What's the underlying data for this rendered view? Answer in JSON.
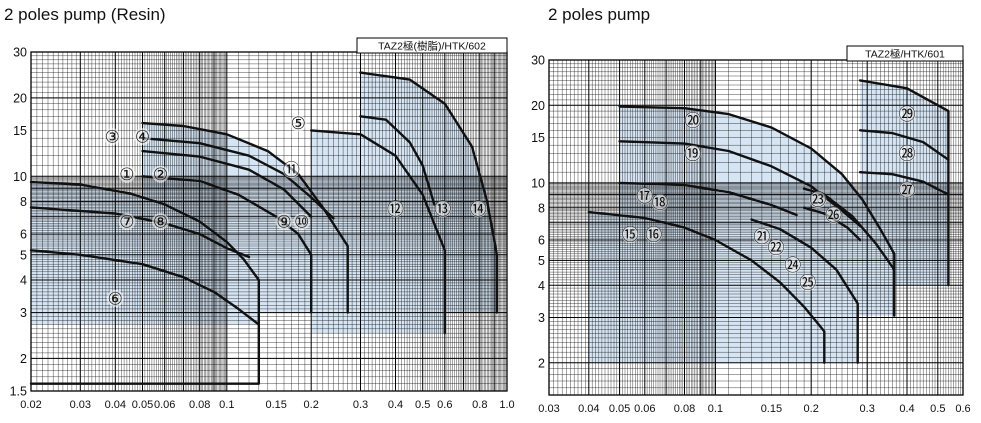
{
  "chart_data": [
    {
      "type": "area",
      "title": "2 poles pump (Resin)",
      "model_code": "TAZ2極(樹脂)/HTK/602",
      "scale": "log-log",
      "xlim": [
        0.02,
        1.0
      ],
      "ylim": [
        1.5,
        30
      ],
      "x_ticks": [
        "0.02",
        "0.03",
        "0.04",
        "0.05",
        "0.06",
        "0.08",
        "0.1",
        "0.15",
        "0.2",
        "0.3",
        "0.4",
        "0.5",
        "0.6",
        "0.8",
        "1.0"
      ],
      "x_tick_values": [
        0.02,
        0.03,
        0.04,
        0.05,
        0.06,
        0.08,
        0.1,
        0.15,
        0.2,
        0.3,
        0.4,
        0.5,
        0.6,
        0.8,
        1.0
      ],
      "y_ticks": [
        "30",
        "20",
        "15",
        "10",
        "8",
        "6",
        "5",
        "4",
        "3",
        "2",
        "1.5"
      ],
      "y_tick_values": [
        30,
        20,
        15,
        10,
        8,
        6,
        5,
        4,
        3,
        2,
        1.5
      ],
      "grid": true,
      "regions": [
        {
          "outline": [
            [
              0.02,
              9.5
            ],
            [
              0.03,
              9.3
            ],
            [
              0.045,
              8.6
            ],
            [
              0.06,
              7.8
            ],
            [
              0.08,
              6.7
            ],
            [
              0.1,
              5.6
            ],
            [
              0.115,
              4.8
            ],
            [
              0.13,
              4.0
            ],
            [
              0.13,
              2.7
            ],
            [
              0.02,
              2.7
            ]
          ]
        },
        {
          "outline": [
            [
              0.05,
              16
            ],
            [
              0.07,
              15.6
            ],
            [
              0.1,
              14.5
            ],
            [
              0.14,
              12.5
            ],
            [
              0.18,
              10.2
            ],
            [
              0.22,
              7.6
            ],
            [
              0.27,
              5.4
            ],
            [
              0.27,
              3.0
            ],
            [
              0.05,
              3.0
            ]
          ]
        },
        {
          "outline": [
            [
              0.2,
              15
            ],
            [
              0.3,
              14.5
            ],
            [
              0.4,
              12
            ],
            [
              0.5,
              8.5
            ],
            [
              0.6,
              5.2
            ],
            [
              0.6,
              2.5
            ],
            [
              0.2,
              2.5
            ]
          ]
        },
        {
          "outline": [
            [
              0.3,
              25
            ],
            [
              0.45,
              23.5
            ],
            [
              0.6,
              19
            ],
            [
              0.75,
              13
            ],
            [
              0.85,
              8
            ],
            [
              0.92,
              5
            ],
            [
              0.92,
              3.0
            ],
            [
              0.3,
              3.0
            ]
          ]
        }
      ],
      "curves": [
        {
          "points": [
            [
              0.02,
              9.5
            ],
            [
              0.03,
              9.3
            ],
            [
              0.045,
              8.6
            ],
            [
              0.06,
              7.8
            ],
            [
              0.08,
              6.7
            ],
            [
              0.1,
              5.6
            ],
            [
              0.115,
              4.8
            ],
            [
              0.13,
              4.0
            ],
            [
              0.13,
              2.7
            ]
          ]
        },
        {
          "points": [
            [
              0.02,
              7.6
            ],
            [
              0.04,
              7.2
            ],
            [
              0.06,
              6.6
            ],
            [
              0.08,
              6.0
            ],
            [
              0.1,
              5.3
            ],
            [
              0.12,
              4.9
            ]
          ]
        },
        {
          "points": [
            [
              0.02,
              5.2
            ],
            [
              0.03,
              5.0
            ],
            [
              0.05,
              4.6
            ],
            [
              0.07,
              4.1
            ],
            [
              0.09,
              3.6
            ],
            [
              0.11,
              3.1
            ],
            [
              0.13,
              2.7
            ],
            [
              0.13,
              1.6
            ],
            [
              0.02,
              1.6
            ]
          ]
        },
        {
          "points": [
            [
              0.05,
              16
            ],
            [
              0.07,
              15.6
            ],
            [
              0.1,
              14.5
            ],
            [
              0.14,
              12.5
            ],
            [
              0.18,
              10.2
            ],
            [
              0.22,
              7.6
            ],
            [
              0.27,
              5.4
            ],
            [
              0.27,
              3.0
            ]
          ]
        },
        {
          "points": [
            [
              0.05,
              14
            ],
            [
              0.08,
              13.4
            ],
            [
              0.12,
              12.0
            ],
            [
              0.16,
              10.2
            ],
            [
              0.2,
              8.3
            ],
            [
              0.24,
              6.9
            ]
          ]
        },
        {
          "points": [
            [
              0.05,
              12.5
            ],
            [
              0.08,
              11.9
            ],
            [
              0.12,
              10.6
            ],
            [
              0.16,
              8.9
            ],
            [
              0.2,
              7.0
            ]
          ]
        },
        {
          "points": [
            [
              0.05,
              10
            ],
            [
              0.08,
              9.6
            ],
            [
              0.11,
              8.5
            ],
            [
              0.15,
              7.0
            ],
            [
              0.18,
              6.0
            ],
            [
              0.2,
              5.0
            ],
            [
              0.2,
              3.0
            ]
          ]
        },
        {
          "points": [
            [
              0.2,
              15
            ],
            [
              0.3,
              14.5
            ],
            [
              0.4,
              12
            ],
            [
              0.5,
              8.5
            ],
            [
              0.6,
              5.2
            ],
            [
              0.6,
              2.5
            ]
          ]
        },
        {
          "points": [
            [
              0.3,
              17
            ],
            [
              0.37,
              16.5
            ],
            [
              0.45,
              13.5
            ],
            [
              0.5,
              11
            ],
            [
              0.55,
              7.8
            ]
          ]
        },
        {
          "points": [
            [
              0.3,
              25
            ],
            [
              0.45,
              23.5
            ],
            [
              0.6,
              19
            ],
            [
              0.75,
              13
            ],
            [
              0.85,
              8
            ],
            [
              0.92,
              5
            ],
            [
              0.92,
              3.0
            ]
          ]
        }
      ],
      "labels": [
        {
          "text": "①",
          "x": 0.044,
          "y": 10.2
        },
        {
          "text": "②",
          "x": 0.058,
          "y": 10.2
        },
        {
          "text": "③",
          "x": 0.039,
          "y": 14.2
        },
        {
          "text": "④",
          "x": 0.05,
          "y": 14.2
        },
        {
          "text": "⑤",
          "x": 0.18,
          "y": 16.0
        },
        {
          "text": "⑥",
          "x": 0.04,
          "y": 3.4
        },
        {
          "text": "⑦",
          "x": 0.044,
          "y": 6.7
        },
        {
          "text": "⑧",
          "x": 0.058,
          "y": 6.7
        },
        {
          "text": "⑨",
          "x": 0.16,
          "y": 6.7
        },
        {
          "text": "⑩",
          "x": 0.185,
          "y": 6.7
        },
        {
          "text": "⑪",
          "x": 0.17,
          "y": 10.6
        },
        {
          "text": "⑫",
          "x": 0.4,
          "y": 7.5
        },
        {
          "text": "⑬",
          "x": 0.59,
          "y": 7.5
        },
        {
          "text": "⑭",
          "x": 0.79,
          "y": 7.5
        }
      ]
    },
    {
      "type": "area",
      "title": "2 poles pump",
      "model_code": "TAZ2極/HTK/601",
      "scale": "log-log",
      "xlim": [
        0.03,
        0.6
      ],
      "ylim": [
        1.5,
        30
      ],
      "x_ticks": [
        "0.03",
        "0.04",
        "0.05",
        "0.06",
        "0.08",
        "0.1",
        "0.15",
        "0.2",
        "0.3",
        "0.4",
        "0.5",
        "0.6"
      ],
      "x_tick_values": [
        0.03,
        0.04,
        0.05,
        0.06,
        0.08,
        0.1,
        0.15,
        0.2,
        0.3,
        0.4,
        0.5,
        0.6
      ],
      "y_ticks": [
        "30",
        "20",
        "15",
        "10",
        "8",
        "6",
        "5",
        "4",
        "3",
        "2"
      ],
      "y_tick_values": [
        30,
        20,
        15,
        10,
        8,
        6,
        5,
        4,
        3,
        2
      ],
      "grid": true,
      "regions": [
        {
          "outline": [
            [
              0.05,
              19.8
            ],
            [
              0.08,
              19.5
            ],
            [
              0.11,
              18.5
            ],
            [
              0.15,
              16.4
            ],
            [
              0.2,
              13.6
            ],
            [
              0.25,
              10.8
            ],
            [
              0.29,
              8.6
            ],
            [
              0.33,
              6.6
            ],
            [
              0.365,
              5.3
            ],
            [
              0.365,
              3.05
            ],
            [
              0.05,
              3.05
            ]
          ]
        },
        {
          "outline": [
            [
              0.04,
              7.7
            ],
            [
              0.06,
              7.3
            ],
            [
              0.08,
              6.7
            ],
            [
              0.1,
              6.0
            ],
            [
              0.13,
              5.0
            ],
            [
              0.16,
              4.1
            ],
            [
              0.19,
              3.3
            ],
            [
              0.22,
              2.65
            ],
            [
              0.22,
              2.0
            ],
            [
              0.04,
              2.0
            ]
          ]
        },
        {
          "outline": [
            [
              0.13,
              7.2
            ],
            [
              0.16,
              6.6
            ],
            [
              0.2,
              5.6
            ],
            [
              0.24,
              4.6
            ],
            [
              0.28,
              3.4
            ],
            [
              0.28,
              2.0
            ],
            [
              0.13,
              2.0
            ]
          ]
        },
        {
          "outline": [
            [
              0.19,
              9.5
            ],
            [
              0.22,
              9.0
            ],
            [
              0.27,
              7.4
            ],
            [
              0.32,
              5.8
            ],
            [
              0.365,
              4.6
            ],
            [
              0.365,
              3.05
            ],
            [
              0.19,
              3.05
            ]
          ]
        },
        {
          "outline": [
            [
              0.285,
              25
            ],
            [
              0.4,
              23.3
            ],
            [
              0.54,
              19
            ],
            [
              0.54,
              4.0
            ],
            [
              0.285,
              4.0
            ]
          ]
        }
      ],
      "curves": [
        {
          "points": [
            [
              0.05,
              19.8
            ],
            [
              0.08,
              19.5
            ],
            [
              0.11,
              18.5
            ],
            [
              0.15,
              16.4
            ],
            [
              0.2,
              13.6
            ],
            [
              0.25,
              10.8
            ],
            [
              0.29,
              8.6
            ],
            [
              0.33,
              6.6
            ],
            [
              0.365,
              5.3
            ],
            [
              0.365,
              3.05
            ]
          ]
        },
        {
          "points": [
            [
              0.05,
              14.5
            ],
            [
              0.08,
              14.2
            ],
            [
              0.11,
              13.3
            ],
            [
              0.15,
              11.6
            ],
            [
              0.2,
              9.7
            ],
            [
              0.25,
              7.8
            ],
            [
              0.285,
              6.8
            ]
          ]
        },
        {
          "points": [
            [
              0.05,
              10
            ],
            [
              0.08,
              9.8
            ],
            [
              0.11,
              9.2
            ],
            [
              0.15,
              8.2
            ],
            [
              0.18,
              7.5
            ]
          ]
        },
        {
          "points": [
            [
              0.04,
              7.7
            ],
            [
              0.06,
              7.3
            ],
            [
              0.08,
              6.7
            ],
            [
              0.1,
              6.0
            ],
            [
              0.13,
              5.0
            ],
            [
              0.16,
              4.1
            ],
            [
              0.19,
              3.3
            ],
            [
              0.22,
              2.65
            ],
            [
              0.22,
              2.0
            ]
          ]
        },
        {
          "points": [
            [
              0.13,
              7.2
            ],
            [
              0.16,
              6.6
            ],
            [
              0.2,
              5.6
            ],
            [
              0.24,
              4.6
            ],
            [
              0.28,
              3.4
            ],
            [
              0.28,
              2.0
            ]
          ]
        },
        {
          "points": [
            [
              0.19,
              9.5
            ],
            [
              0.22,
              9.0
            ],
            [
              0.27,
              7.4
            ],
            [
              0.32,
              5.8
            ],
            [
              0.365,
              4.6
            ],
            [
              0.365,
              3.05
            ]
          ]
        },
        {
          "points": [
            [
              0.19,
              8.0
            ],
            [
              0.22,
              7.6
            ],
            [
              0.26,
              6.7
            ],
            [
              0.285,
              6.0
            ]
          ]
        },
        {
          "points": [
            [
              0.285,
              25
            ],
            [
              0.4,
              23.3
            ],
            [
              0.54,
              19
            ],
            [
              0.54,
              4.0
            ]
          ]
        },
        {
          "points": [
            [
              0.285,
              16
            ],
            [
              0.36,
              15.6
            ],
            [
              0.45,
              14.4
            ],
            [
              0.54,
              12.3
            ]
          ]
        },
        {
          "points": [
            [
              0.285,
              11
            ],
            [
              0.36,
              10.8
            ],
            [
              0.45,
              10.1
            ],
            [
              0.54,
              9.0
            ]
          ]
        }
      ],
      "labels": [
        {
          "text": "⑮",
          "x": 0.054,
          "y": 6.3
        },
        {
          "text": "⑯",
          "x": 0.064,
          "y": 6.3
        },
        {
          "text": "⑰",
          "x": 0.06,
          "y": 8.9
        },
        {
          "text": "⑱",
          "x": 0.067,
          "y": 8.4
        },
        {
          "text": "⑲",
          "x": 0.085,
          "y": 13.0
        },
        {
          "text": "⑳",
          "x": 0.085,
          "y": 17.5
        },
        {
          "text": "㉑",
          "x": 0.14,
          "y": 6.2
        },
        {
          "text": "㉒",
          "x": 0.155,
          "y": 5.6
        },
        {
          "text": "㉓",
          "x": 0.21,
          "y": 8.6
        },
        {
          "text": "㉔",
          "x": 0.175,
          "y": 4.8
        },
        {
          "text": "㉕",
          "x": 0.195,
          "y": 4.1
        },
        {
          "text": "㉖",
          "x": 0.235,
          "y": 7.5
        },
        {
          "text": "㉗",
          "x": 0.4,
          "y": 9.4
        },
        {
          "text": "㉘",
          "x": 0.4,
          "y": 13.0
        },
        {
          "text": "㉙",
          "x": 0.4,
          "y": 18.5
        }
      ]
    }
  ],
  "colors": {
    "fill": "#d6e5f4",
    "curve": "#111111",
    "grid": "#000000",
    "frame": "#000000"
  }
}
